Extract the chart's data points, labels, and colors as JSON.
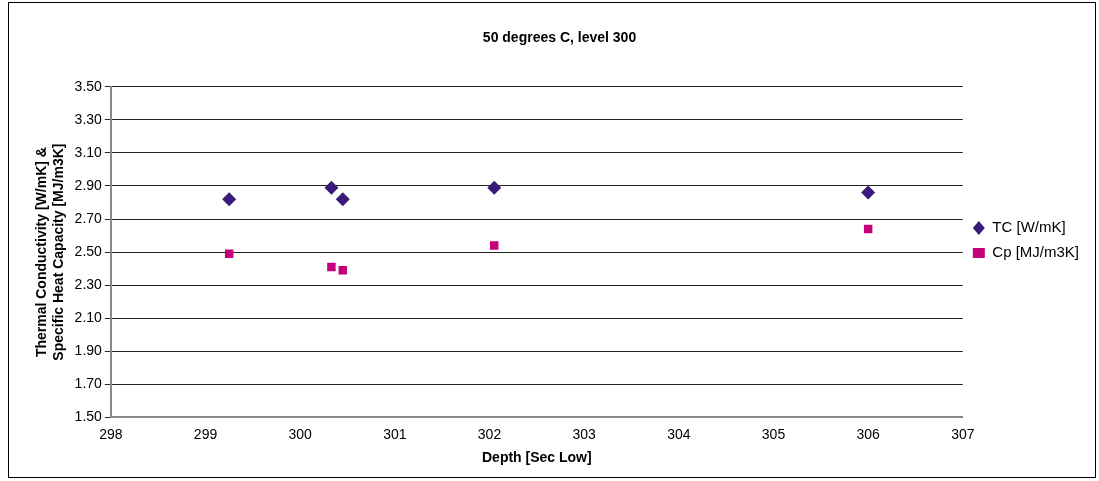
{
  "chart_data": {
    "type": "scatter",
    "title": "50 degrees C, level 300",
    "xlabel": "Depth [Sec Low]",
    "ylabel": "Thermal Conductivity [W/mK] & Specific Heat Capacity [MJ/m3K]",
    "xlim": [
      298,
      307
    ],
    "xticks": [
      298,
      299,
      300,
      301,
      302,
      303,
      304,
      305,
      306,
      307
    ],
    "ylim": [
      1.5,
      3.5
    ],
    "yticks": [
      {
        "value": 1.5,
        "label": "1.50"
      },
      {
        "value": 1.7,
        "label": "1.70"
      },
      {
        "value": 1.9,
        "label": "1.90"
      },
      {
        "value": 2.1,
        "label": "2.10"
      },
      {
        "value": 2.3,
        "label": "2.30"
      },
      {
        "value": 2.5,
        "label": "2.50"
      },
      {
        "value": 2.7,
        "label": "2.70"
      },
      {
        "value": 2.9,
        "label": "2.90"
      },
      {
        "value": 3.1,
        "label": "3.10"
      },
      {
        "value": 3.3,
        "label": "3.30"
      },
      {
        "value": 3.5,
        "label": "3.50"
      }
    ],
    "grid": "y",
    "legend": "right",
    "series": [
      {
        "name": "TC [W/mK]",
        "color": "#3a1a78",
        "marker": "diamond",
        "x": [
          299.25,
          300.33,
          300.45,
          302.05,
          306.0
        ],
        "values": [
          2.82,
          2.89,
          2.82,
          2.89,
          2.86
        ]
      },
      {
        "name": "Cp [MJ/m3K]",
        "color": "#c4007a",
        "marker": "square",
        "x": [
          299.25,
          300.33,
          300.45,
          302.05,
          306.0
        ],
        "values": [
          2.49,
          2.41,
          2.39,
          2.54,
          2.64
        ]
      }
    ]
  }
}
